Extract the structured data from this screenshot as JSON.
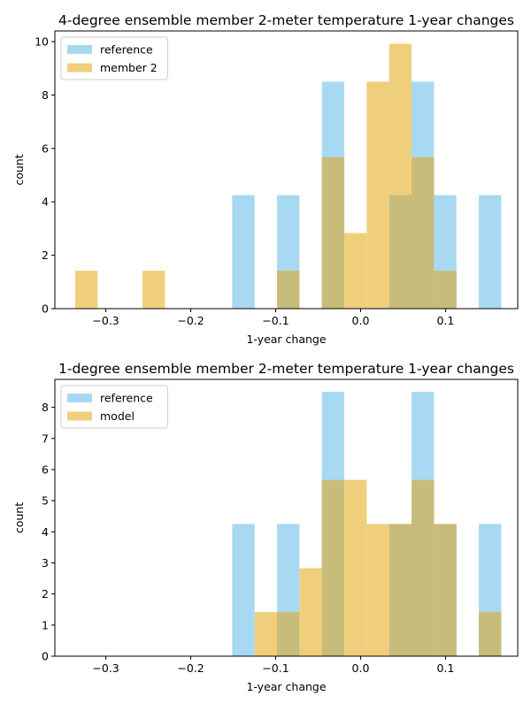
{
  "chart_data": [
    {
      "type": "histogram",
      "title": "4-degree ensemble member 2-meter temperature 1-year changes",
      "xlabel": "1-year change",
      "ylabel": "count",
      "xlim": [
        -0.36,
        0.185
      ],
      "ylim": [
        0,
        10.4
      ],
      "xticks": [
        -0.3,
        -0.2,
        -0.1,
        0.0,
        0.1
      ],
      "xtick_labels": [
        "−0.3",
        "−0.2",
        "−0.1",
        "0.0",
        "0.1"
      ],
      "yticks": [
        0,
        2,
        4,
        6,
        8,
        10
      ],
      "ytick_labels": [
        "0",
        "2",
        "4",
        "6",
        "8",
        "10"
      ],
      "bin_edges": [
        -0.336,
        -0.3096,
        -0.2832,
        -0.2568,
        -0.2304,
        -0.204,
        -0.1776,
        -0.1512,
        -0.1248,
        -0.0984,
        -0.072,
        -0.0456,
        -0.0192,
        0.0072,
        0.0336,
        0.06,
        0.0864,
        0.1128,
        0.1392,
        0.1656
      ],
      "legend_position": "upper left",
      "series": [
        {
          "name": "reference",
          "color": "#a8d9f2",
          "values": [
            0,
            0,
            0,
            0,
            0,
            0,
            0,
            4.25,
            0,
            4.25,
            0,
            8.5,
            0,
            0,
            4.25,
            8.5,
            4.25,
            0,
            4.25
          ]
        },
        {
          "name": "member 2",
          "color": "#f0cf7c",
          "values": [
            1.42,
            0,
            0,
            1.42,
            0,
            0,
            0,
            0,
            0,
            1.42,
            0,
            5.67,
            2.83,
            8.5,
            9.92,
            5.67,
            1.42,
            0,
            0
          ]
        }
      ],
      "overlap_color": "#c8bc7a"
    },
    {
      "type": "histogram",
      "title": "1-degree ensemble member 2-meter temperature 1-year changes",
      "xlabel": "1-year change",
      "ylabel": "count",
      "xlim": [
        -0.36,
        0.185
      ],
      "ylim": [
        0,
        8.9
      ],
      "xticks": [
        -0.3,
        -0.2,
        -0.1,
        0.0,
        0.1
      ],
      "xtick_labels": [
        "−0.3",
        "−0.2",
        "−0.1",
        "0.0",
        "0.1"
      ],
      "yticks": [
        0,
        1,
        2,
        3,
        4,
        5,
        6,
        7,
        8
      ],
      "ytick_labels": [
        "0",
        "1",
        "2",
        "3",
        "4",
        "5",
        "6",
        "7",
        "8"
      ],
      "bin_edges": [
        -0.336,
        -0.3096,
        -0.2832,
        -0.2568,
        -0.2304,
        -0.204,
        -0.1776,
        -0.1512,
        -0.1248,
        -0.0984,
        -0.072,
        -0.0456,
        -0.0192,
        0.0072,
        0.0336,
        0.06,
        0.0864,
        0.1128,
        0.1392,
        0.1656
      ],
      "legend_position": "upper left",
      "series": [
        {
          "name": "reference",
          "color": "#a8d9f2",
          "values": [
            0,
            0,
            0,
            0,
            0,
            0,
            0,
            4.25,
            0,
            4.25,
            0,
            8.5,
            0,
            0,
            4.25,
            8.5,
            4.25,
            0,
            4.25
          ]
        },
        {
          "name": "model",
          "color": "#f0cf7c",
          "values": [
            0,
            0,
            0,
            0,
            0,
            0,
            0,
            0,
            1.42,
            1.42,
            2.83,
            5.67,
            5.67,
            4.25,
            4.25,
            5.67,
            4.25,
            0,
            1.42
          ]
        }
      ],
      "overlap_color": "#c8bc7a"
    }
  ]
}
